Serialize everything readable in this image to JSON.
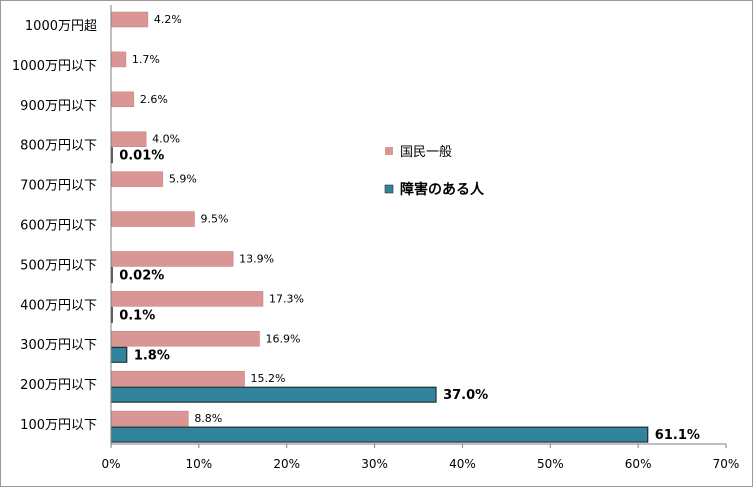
{
  "colors": {
    "general": "#DA9694",
    "general_border": "#C07C7A",
    "disabled": "#31849B",
    "disabled_border": "#1a1a1a",
    "axis": "#7f7f7f"
  },
  "chart_data": {
    "type": "bar",
    "orientation": "horizontal",
    "categories": [
      "1000万円超",
      "1000万円以下",
      "900万円以下",
      "800万円以下",
      "700万円以下",
      "600万円以下",
      "500万円以下",
      "400万円以下",
      "300万円以下",
      "200万円以下",
      "100万円以下"
    ],
    "series": [
      {
        "name": "国民一般",
        "values": [
          4.2,
          1.7,
          2.6,
          4.0,
          5.9,
          9.5,
          13.9,
          17.3,
          16.9,
          15.2,
          8.8
        ],
        "labels": [
          "4.2%",
          "1.7%",
          "2.6%",
          "4.0%",
          "5.9%",
          "9.5%",
          "13.9%",
          "17.3%",
          "16.9%",
          "15.2%",
          "8.8%"
        ]
      },
      {
        "name": "障害のある人",
        "values": [
          null,
          null,
          null,
          0.01,
          null,
          null,
          0.02,
          0.1,
          1.8,
          37.0,
          61.1
        ],
        "labels": [
          null,
          null,
          null,
          "0.01%",
          null,
          null,
          "0.02%",
          "0.1%",
          "1.8%",
          "37.0%",
          "61.1%"
        ]
      }
    ],
    "xlim": [
      0,
      70
    ],
    "x_ticks": [
      0,
      10,
      20,
      30,
      40,
      50,
      60,
      70
    ],
    "x_tick_labels": [
      "0%",
      "10%",
      "20%",
      "30%",
      "40%",
      "50%",
      "60%",
      "70%"
    ],
    "legend_position": "right",
    "grid": false
  }
}
